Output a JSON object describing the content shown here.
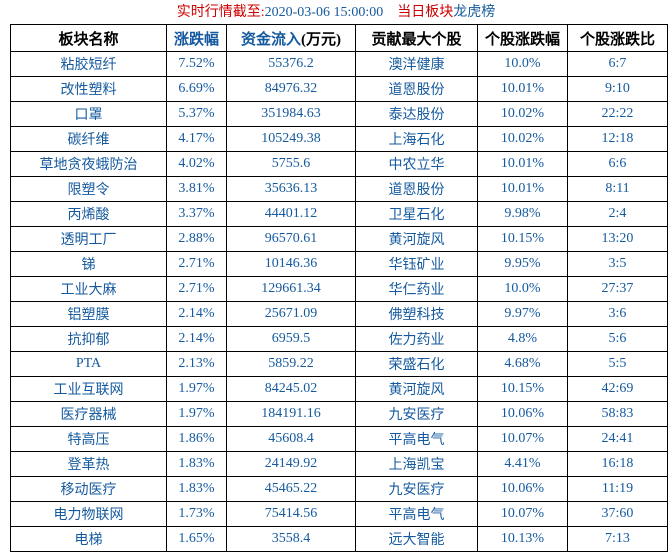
{
  "title": {
    "prefix": "实时行情截至:",
    "datetime": "2020-03-06 15:00:00",
    "middle": "当日板块",
    "link": "龙虎榜"
  },
  "colors": {
    "title_red": "#cc0000",
    "link_blue": "#155a9e",
    "cell_text_blue": "#155a9e",
    "border": "#000000",
    "header_text_black": "#000000"
  },
  "table": {
    "headers": [
      {
        "text": "板块名称",
        "link": false
      },
      {
        "text": "涨跌幅",
        "link": true
      },
      {
        "text": "资金流入",
        "link": true,
        "suffix": "(万元)"
      },
      {
        "text": "贡献最大个股",
        "link": false
      },
      {
        "text": "个股涨跌幅",
        "link": false
      },
      {
        "text": "个股涨跌比",
        "link": false
      }
    ],
    "rows": [
      [
        "粘胶短纤",
        "7.52%",
        "55376.2",
        "澳洋健康",
        "10.0%",
        "6:7"
      ],
      [
        "改性塑料",
        "6.69%",
        "84976.32",
        "道恩股份",
        "10.01%",
        "9:10"
      ],
      [
        "口罩",
        "5.37%",
        "351984.63",
        "泰达股份",
        "10.02%",
        "22:22"
      ],
      [
        "碳纤维",
        "4.17%",
        "105249.38",
        "上海石化",
        "10.02%",
        "12:18"
      ],
      [
        "草地贪夜蛾防治",
        "4.02%",
        "5755.6",
        "中农立华",
        "10.01%",
        "6:6"
      ],
      [
        "限塑令",
        "3.81%",
        "35636.13",
        "道恩股份",
        "10.01%",
        "8:11"
      ],
      [
        "丙烯酸",
        "3.37%",
        "44401.12",
        "卫星石化",
        "9.98%",
        "2:4"
      ],
      [
        "透明工厂",
        "2.88%",
        "96570.61",
        "黄河旋风",
        "10.15%",
        "13:20"
      ],
      [
        "锑",
        "2.71%",
        "10146.36",
        "华钰矿业",
        "9.95%",
        "3:5"
      ],
      [
        "工业大麻",
        "2.71%",
        "129661.34",
        "华仁药业",
        "10.0%",
        "27:37"
      ],
      [
        "铝塑膜",
        "2.14%",
        "25671.09",
        "佛塑科技",
        "9.97%",
        "3:6"
      ],
      [
        "抗抑郁",
        "2.14%",
        "6959.5",
        "佐力药业",
        "4.8%",
        "5:6"
      ],
      [
        "PTA",
        "2.13%",
        "5859.22",
        "荣盛石化",
        "4.68%",
        "5:5"
      ],
      [
        "工业互联网",
        "1.97%",
        "84245.02",
        "黄河旋风",
        "10.15%",
        "42:69"
      ],
      [
        "医疗器械",
        "1.97%",
        "184191.16",
        "九安医疗",
        "10.06%",
        "58:83"
      ],
      [
        "特高压",
        "1.86%",
        "45608.4",
        "平高电气",
        "10.07%",
        "24:41"
      ],
      [
        "登革热",
        "1.83%",
        "24149.92",
        "上海凯宝",
        "4.41%",
        "16:18"
      ],
      [
        "移动医疗",
        "1.83%",
        "45465.22",
        "九安医疗",
        "10.06%",
        "11:19"
      ],
      [
        "电力物联网",
        "1.73%",
        "75414.56",
        "平高电气",
        "10.07%",
        "37:60"
      ],
      [
        "电梯",
        "1.65%",
        "3558.4",
        "远大智能",
        "10.13%",
        "7:13"
      ]
    ]
  }
}
